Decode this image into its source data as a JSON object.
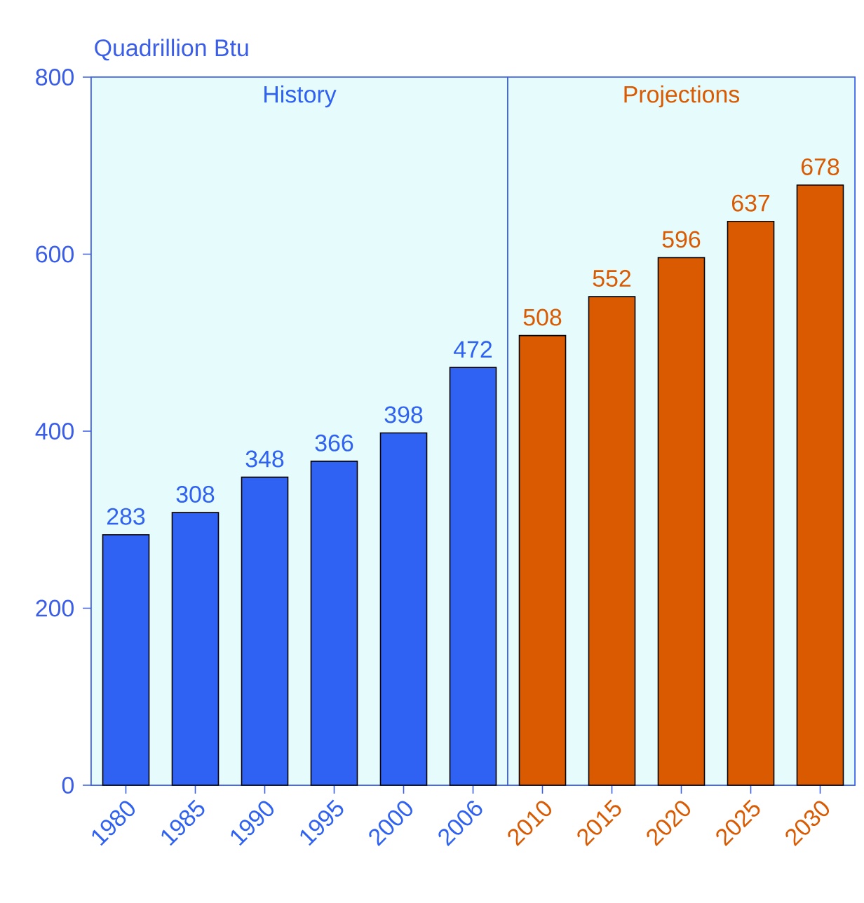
{
  "chart_data": {
    "type": "bar",
    "ylabel": "Quadrillion Btu",
    "categories": [
      "1980",
      "1985",
      "1990",
      "1995",
      "2000",
      "2006",
      "2010",
      "2015",
      "2020",
      "2025",
      "2030"
    ],
    "values": [
      283,
      308,
      348,
      366,
      398,
      472,
      508,
      552,
      596,
      637,
      678
    ],
    "colors": [
      "#2f62f2",
      "#2f62f2",
      "#2f62f2",
      "#2f62f2",
      "#2f62f2",
      "#2f62f2",
      "#d95a00",
      "#d95a00",
      "#d95a00",
      "#d95a00",
      "#d95a00"
    ],
    "ylim": [
      0,
      800
    ],
    "yticks": [
      0,
      200,
      400,
      600,
      800
    ],
    "data_labels": true,
    "bands": [
      {
        "axis": "x",
        "from": "1980",
        "to": "2006",
        "label": "History",
        "color": "#e6fbfb"
      },
      {
        "axis": "x",
        "from": "2010",
        "to": "2030",
        "label": "Projections",
        "color": "#e6fbfb"
      }
    ]
  }
}
